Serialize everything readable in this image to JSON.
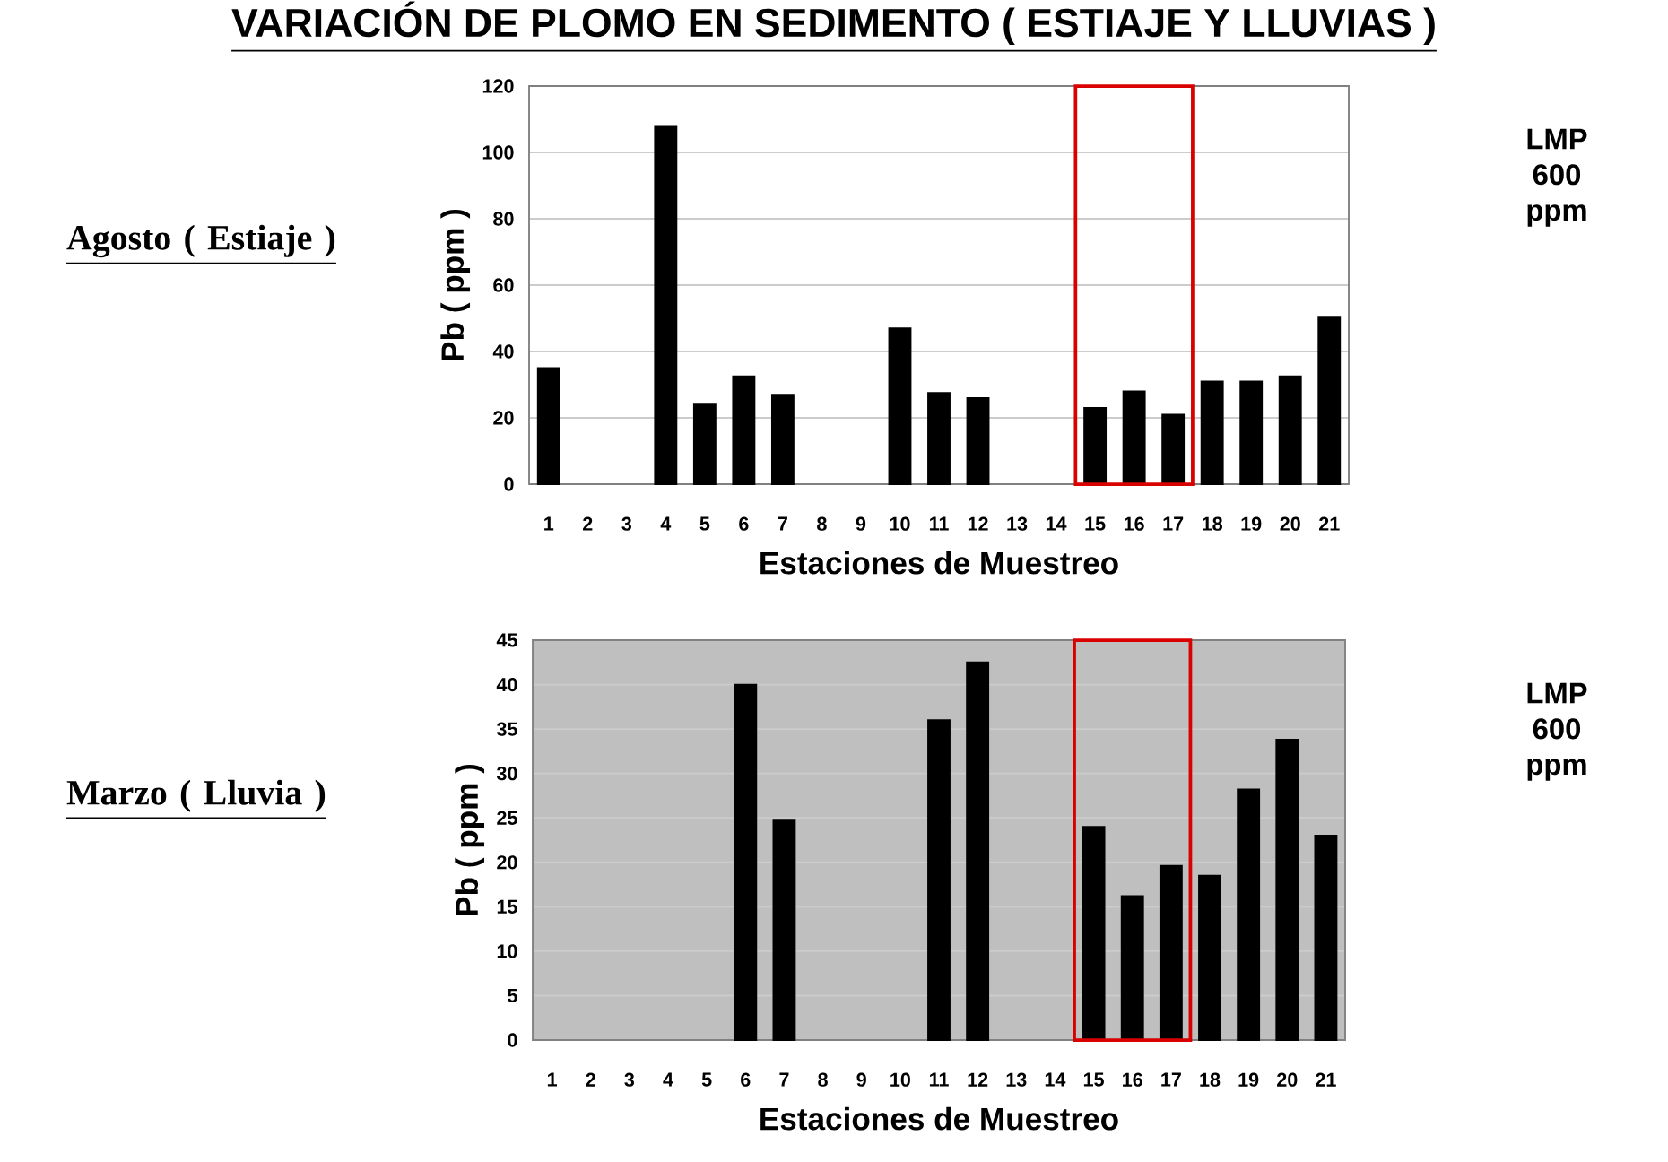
{
  "chart_data": [
    {
      "type": "bar",
      "title": "VARIACIÓN DE PLOMO EN SEDIMENTO ( ESTIAJE Y LLUVIAS )",
      "subtitle": "Agosto ( Estiaje )",
      "xlabel": "Estaciones de Muestreo",
      "ylabel": "Pb ( ppm )",
      "categories": [
        "1",
        "2",
        "3",
        "4",
        "5",
        "6",
        "7",
        "8",
        "9",
        "10",
        "11",
        "12",
        "13",
        "14",
        "15",
        "16",
        "17",
        "18",
        "19",
        "20",
        "21"
      ],
      "values": [
        35,
        null,
        null,
        108,
        24,
        32.5,
        27,
        null,
        null,
        47,
        27.5,
        26,
        null,
        null,
        23,
        28,
        21,
        31,
        31,
        32.5,
        50.5
      ],
      "color": "#000000",
      "ylim": [
        0,
        120
      ],
      "yticks": [
        0,
        20,
        40,
        60,
        80,
        100,
        120
      ],
      "grid": "y",
      "annotations": [
        "LMP 600 ppm"
      ]
    },
    {
      "type": "bar",
      "subtitle": "Marzo ( Lluvia )",
      "xlabel": "Estaciones de Muestreo",
      "ylabel": "Pb ( ppm )",
      "categories": [
        "1",
        "2",
        "3",
        "4",
        "5",
        "6",
        "7",
        "8",
        "9",
        "10",
        "11",
        "12",
        "13",
        "14",
        "15",
        "16",
        "17",
        "18",
        "19",
        "20",
        "21"
      ],
      "values": [
        null,
        null,
        null,
        null,
        null,
        40,
        24.7,
        null,
        null,
        null,
        36,
        42.5,
        null,
        null,
        24,
        16.2,
        19.6,
        18.5,
        28.2,
        33.8,
        23
      ],
      "color": "#000000",
      "ylim": [
        0,
        45
      ],
      "yticks": [
        0,
        5,
        10,
        15,
        20,
        25,
        30,
        35,
        40,
        45
      ],
      "grid": "y",
      "annotations": [
        "LMP 600 ppm"
      ]
    }
  ]
}
